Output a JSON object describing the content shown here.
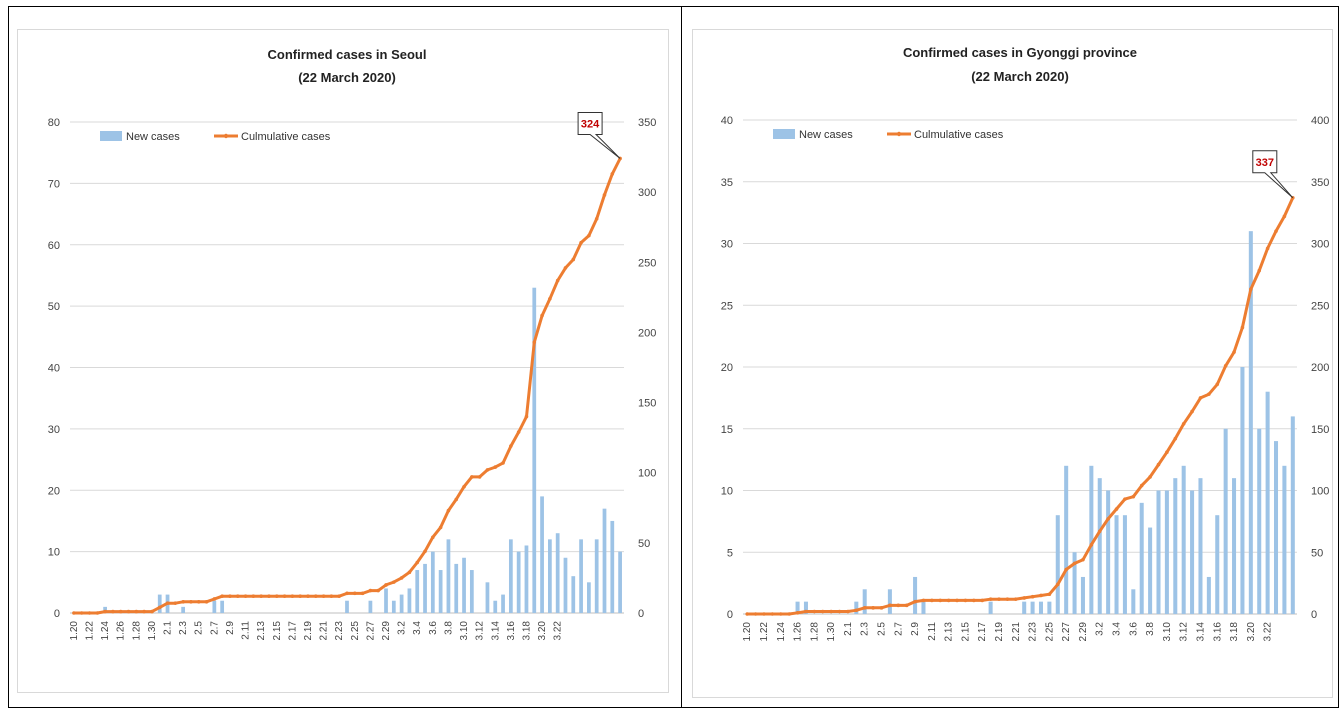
{
  "colors": {
    "bar": "#9dc3e6",
    "line": "#ed7d31",
    "grid": "#d9d9d9",
    "callout_text": "#c00000"
  },
  "chart_data": [
    {
      "type": "bar",
      "title": "Confirmed cases in Seoul",
      "subtitle": "(22 March 2020)",
      "legend": {
        "position": "top-left",
        "entries": [
          "New cases",
          "Culmulative cases"
        ]
      },
      "x_tick_labels": [
        "1.20",
        "1.22",
        "1.24",
        "1.26",
        "1.28",
        "1.30",
        "2.1",
        "2.3",
        "2.5",
        "2.7",
        "2.9",
        "2.11",
        "2.13",
        "2.15",
        "2.17",
        "2.19",
        "2.21",
        "2.23",
        "2.25",
        "2.27",
        "2.29",
        "3.2",
        "3.4",
        "3.6",
        "3.8",
        "3.10",
        "3.12",
        "3.14",
        "3.16",
        "3.18",
        "3.20",
        "3.22"
      ],
      "y_left": {
        "min": 0,
        "max": 80,
        "step": 10
      },
      "y_right": {
        "min": 0,
        "max": 350,
        "step": 50
      },
      "grid": true,
      "series": [
        {
          "name": "New cases",
          "axis": "left",
          "type": "bar",
          "values": [
            0,
            0,
            0,
            0,
            1,
            0,
            0,
            0,
            0,
            0,
            0,
            3,
            3,
            0,
            1,
            0,
            0,
            0,
            2,
            2,
            0,
            0,
            0,
            0,
            0,
            0,
            0,
            0,
            0,
            0,
            0,
            0,
            0,
            0,
            0,
            2,
            0,
            0,
            2,
            0,
            4,
            2,
            3,
            4,
            7,
            8,
            10,
            7,
            12,
            8,
            9,
            7,
            0,
            5,
            2,
            3,
            12,
            10,
            11,
            53,
            19,
            12,
            13,
            9,
            6,
            12,
            5,
            12,
            17,
            15,
            10
          ]
        },
        {
          "name": "Culmulative cases",
          "axis": "right",
          "type": "line",
          "values": [
            0,
            0,
            0,
            0,
            1,
            1,
            1,
            1,
            1,
            1,
            1,
            4,
            7,
            7,
            8,
            8,
            8,
            8,
            10,
            12,
            12,
            12,
            12,
            12,
            12,
            12,
            12,
            12,
            12,
            12,
            12,
            12,
            12,
            12,
            12,
            14,
            14,
            14,
            16,
            16,
            20,
            22,
            25,
            29,
            36,
            44,
            54,
            61,
            73,
            81,
            90,
            97,
            97,
            102,
            104,
            107,
            119,
            129,
            140,
            193,
            212,
            224,
            237,
            246,
            252,
            264,
            269,
            281,
            298,
            313,
            324
          ]
        }
      ],
      "annotation": {
        "label": "324"
      }
    },
    {
      "type": "bar",
      "title": "Confirmed cases in Gyonggi province",
      "subtitle": "(22 March 2020)",
      "legend": {
        "position": "top-left",
        "entries": [
          "New cases",
          "Culmulative cases"
        ]
      },
      "x_tick_labels": [
        "1.20",
        "1.22",
        "1.24",
        "1.26",
        "1.28",
        "1.30",
        "2.1",
        "2.3",
        "2.5",
        "2.7",
        "2.9",
        "2.11",
        "2.13",
        "2.15",
        "2.17",
        "2.19",
        "2.21",
        "2.23",
        "2.25",
        "2.27",
        "2.29",
        "3.2",
        "3.4",
        "3.6",
        "3.8",
        "3.10",
        "3.12",
        "3.14",
        "3.16",
        "3.18",
        "3.20",
        "3.22"
      ],
      "y_left": {
        "min": 0,
        "max": 40,
        "step": 5
      },
      "y_right": {
        "min": 0,
        "max": 400,
        "step": 50
      },
      "grid": true,
      "series": [
        {
          "name": "New cases",
          "axis": "left",
          "type": "bar",
          "values": [
            0,
            0,
            0,
            0,
            0,
            0,
            1,
            1,
            0,
            0,
            0,
            0,
            0,
            1,
            2,
            0,
            0,
            2,
            0,
            0,
            3,
            1,
            0,
            0,
            0,
            0,
            0,
            0,
            0,
            1,
            0,
            0,
            0,
            1,
            1,
            1,
            1,
            8,
            12,
            5,
            3,
            12,
            11,
            10,
            8,
            8,
            2,
            9,
            7,
            10,
            10,
            11,
            12,
            10,
            11,
            3,
            8,
            15,
            11,
            20,
            31,
            15,
            18,
            14,
            12,
            16
          ]
        },
        {
          "name": "Culmulative cases",
          "axis": "right",
          "type": "line",
          "values": [
            0,
            0,
            0,
            0,
            0,
            0,
            1,
            2,
            2,
            2,
            2,
            2,
            2,
            3,
            5,
            5,
            5,
            7,
            7,
            7,
            10,
            11,
            11,
            11,
            11,
            11,
            11,
            11,
            11,
            12,
            12,
            12,
            12,
            13,
            14,
            15,
            16,
            24,
            36,
            41,
            44,
            56,
            67,
            77,
            85,
            93,
            95,
            104,
            111,
            121,
            131,
            142,
            154,
            164,
            175,
            178,
            186,
            201,
            212,
            232,
            263,
            278,
            296,
            310,
            322,
            337
          ]
        }
      ],
      "annotation": {
        "label": "337"
      }
    }
  ]
}
